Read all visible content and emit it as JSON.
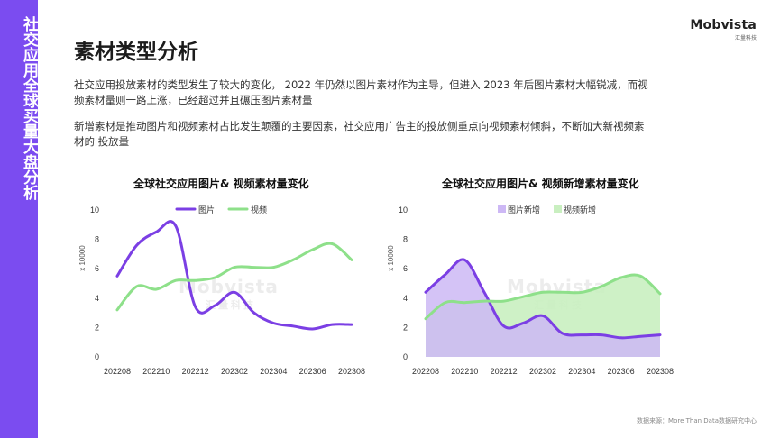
{
  "sidebar": {
    "title": "社交应用全球买量大盘分析"
  },
  "logo": {
    "name": "Mobvista",
    "sub": "汇量科技"
  },
  "page": {
    "title": "素材类型分析",
    "para1": "社交应用投放素材的类型发生了较大的变化， 2022 年仍然以图片素材作为主导，但进入  2023 年后图片素材大幅锐减，而视频素材量则一路上涨，已经超过并且碾压图片素材量",
    "para2": "新增素材是推动图片和视频素材占比发生颠覆的主要因素，社交应用广告主的投放侧重点向视频素材倾斜，不断加大新视频素材的 投放量"
  },
  "watermark": {
    "name": "Mobvista",
    "sub": "汇量科技"
  },
  "colors": {
    "sidebar": "#7b4cf0",
    "image": "#7b3fe4",
    "video": "#8ee08a",
    "image_fill": "#cdb8f5",
    "video_fill": "#c9efc0"
  },
  "chart_data": [
    {
      "type": "line",
      "title": "全球社交应用图片& 视频素材量变化",
      "ylabel": "x 10000",
      "ylim": [
        0,
        10
      ],
      "yticks": [
        "0",
        "2",
        "4",
        "6",
        "8",
        "10"
      ],
      "x": [
        "202208",
        "202209",
        "202210",
        "202211",
        "202212",
        "202301",
        "202302",
        "202303",
        "202304",
        "202305",
        "202306",
        "202307",
        "202308"
      ],
      "xtick_labels": [
        "202208",
        "202210",
        "202212",
        "202302",
        "202304",
        "202306",
        "202308"
      ],
      "series": [
        {
          "name": "图片",
          "values": [
            5.5,
            7.6,
            8.5,
            8.9,
            3.4,
            3.5,
            4.4,
            3.0,
            2.3,
            2.1,
            1.9,
            2.2,
            2.2
          ]
        },
        {
          "name": "视频",
          "values": [
            3.2,
            4.8,
            4.6,
            5.2,
            5.2,
            5.4,
            6.1,
            6.1,
            6.1,
            6.6,
            7.3,
            7.7,
            6.6
          ]
        }
      ]
    },
    {
      "type": "area",
      "title": "全球社交应用图片& 视频新增素材量变化",
      "ylabel": "x 10000",
      "ylim": [
        0,
        10
      ],
      "yticks": [
        "0",
        "2",
        "4",
        "6",
        "8",
        "10"
      ],
      "x": [
        "202208",
        "202209",
        "202210",
        "202211",
        "202212",
        "202301",
        "202302",
        "202303",
        "202304",
        "202305",
        "202306",
        "202307",
        "202308"
      ],
      "xtick_labels": [
        "202208",
        "202210",
        "202212",
        "202302",
        "202304",
        "202306",
        "202308"
      ],
      "series": [
        {
          "name": "图片新增",
          "values": [
            4.4,
            5.6,
            6.6,
            4.4,
            2.1,
            2.3,
            2.8,
            1.6,
            1.5,
            1.5,
            1.3,
            1.4,
            1.5
          ]
        },
        {
          "name": "视频新增",
          "values": [
            2.6,
            3.7,
            3.7,
            3.8,
            3.8,
            4.1,
            4.4,
            4.4,
            4.4,
            4.8,
            5.4,
            5.5,
            4.3
          ]
        }
      ]
    }
  ],
  "source": "数据来源：More Than Data数据研究中心"
}
